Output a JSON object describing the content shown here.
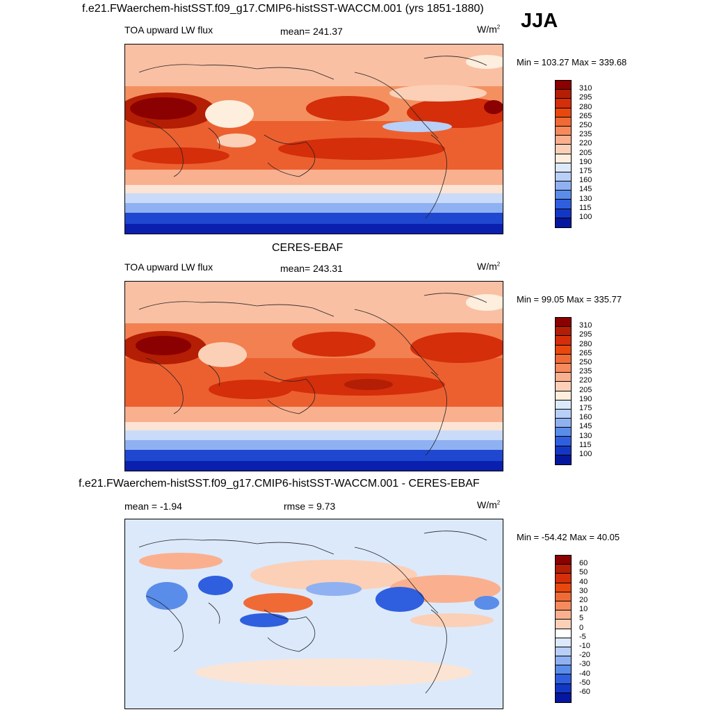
{
  "main_title": "f.e21.FWaerchem-histSST.f09_g17.CMIP6-histSST-WACCM.001 (yrs 1851-1880)",
  "season": "JJA",
  "panels": [
    {
      "id": "model",
      "title": "",
      "left_label": "TOA upward LW flux",
      "center_label": "mean= 241.37",
      "units_base": "W/m",
      "units_exp": "2",
      "minmax": "Min = 103.27 Max = 339.68",
      "colorbar": {
        "labels": [
          "310",
          "295",
          "280",
          "265",
          "250",
          "235",
          "220",
          "205",
          "190",
          "175",
          "160",
          "145",
          "130",
          "115",
          "100"
        ],
        "colors": [
          "#8b0000",
          "#b31e04",
          "#d42e0a",
          "#e8480e",
          "#f06a36",
          "#f68a5c",
          "#fab08e",
          "#fbd0b7",
          "#fdeede",
          "#dce9fb",
          "#b8cff7",
          "#8fb1f2",
          "#5a8ce9",
          "#2f5fdf",
          "#1337c5",
          "#05179e"
        ]
      }
    },
    {
      "id": "obs",
      "title": "CERES-EBAF",
      "left_label": "TOA upward LW flux",
      "center_label": "mean= 243.31",
      "units_base": "W/m",
      "units_exp": "2",
      "minmax": "Min =  99.05 Max = 335.77",
      "colorbar": {
        "labels": [
          "310",
          "295",
          "280",
          "265",
          "250",
          "235",
          "220",
          "205",
          "190",
          "175",
          "160",
          "145",
          "130",
          "115",
          "100"
        ],
        "colors": [
          "#8b0000",
          "#b31e04",
          "#d42e0a",
          "#e8480e",
          "#f06a36",
          "#f68a5c",
          "#fab08e",
          "#fbd0b7",
          "#fdeede",
          "#dce9fb",
          "#b8cff7",
          "#8fb1f2",
          "#5a8ce9",
          "#2f5fdf",
          "#1337c5",
          "#05179e"
        ]
      }
    },
    {
      "id": "diff",
      "title": "f.e21.FWaerchem-histSST.f09_g17.CMIP6-histSST-WACCM.001 - CERES-EBAF",
      "left_label": "mean =  -1.94",
      "center_label": "rmse =    9.73",
      "units_base": "W/m",
      "units_exp": "2",
      "minmax": "Min = -54.42 Max =  40.05",
      "colorbar": {
        "labels": [
          "60",
          "50",
          "40",
          "30",
          "20",
          "10",
          "5",
          "0",
          "-5",
          "-10",
          "-20",
          "-30",
          "-40",
          "-50",
          "-60"
        ],
        "colors": [
          "#8b0000",
          "#b31e04",
          "#d42e0a",
          "#e8480e",
          "#f06a36",
          "#f68a5c",
          "#fab08e",
          "#fbd0b7",
          "#ffffff",
          "#dce9fb",
          "#b8cff7",
          "#8fb1f2",
          "#5a8ce9",
          "#2f5fdf",
          "#1337c5",
          "#05179e"
        ]
      }
    }
  ]
}
